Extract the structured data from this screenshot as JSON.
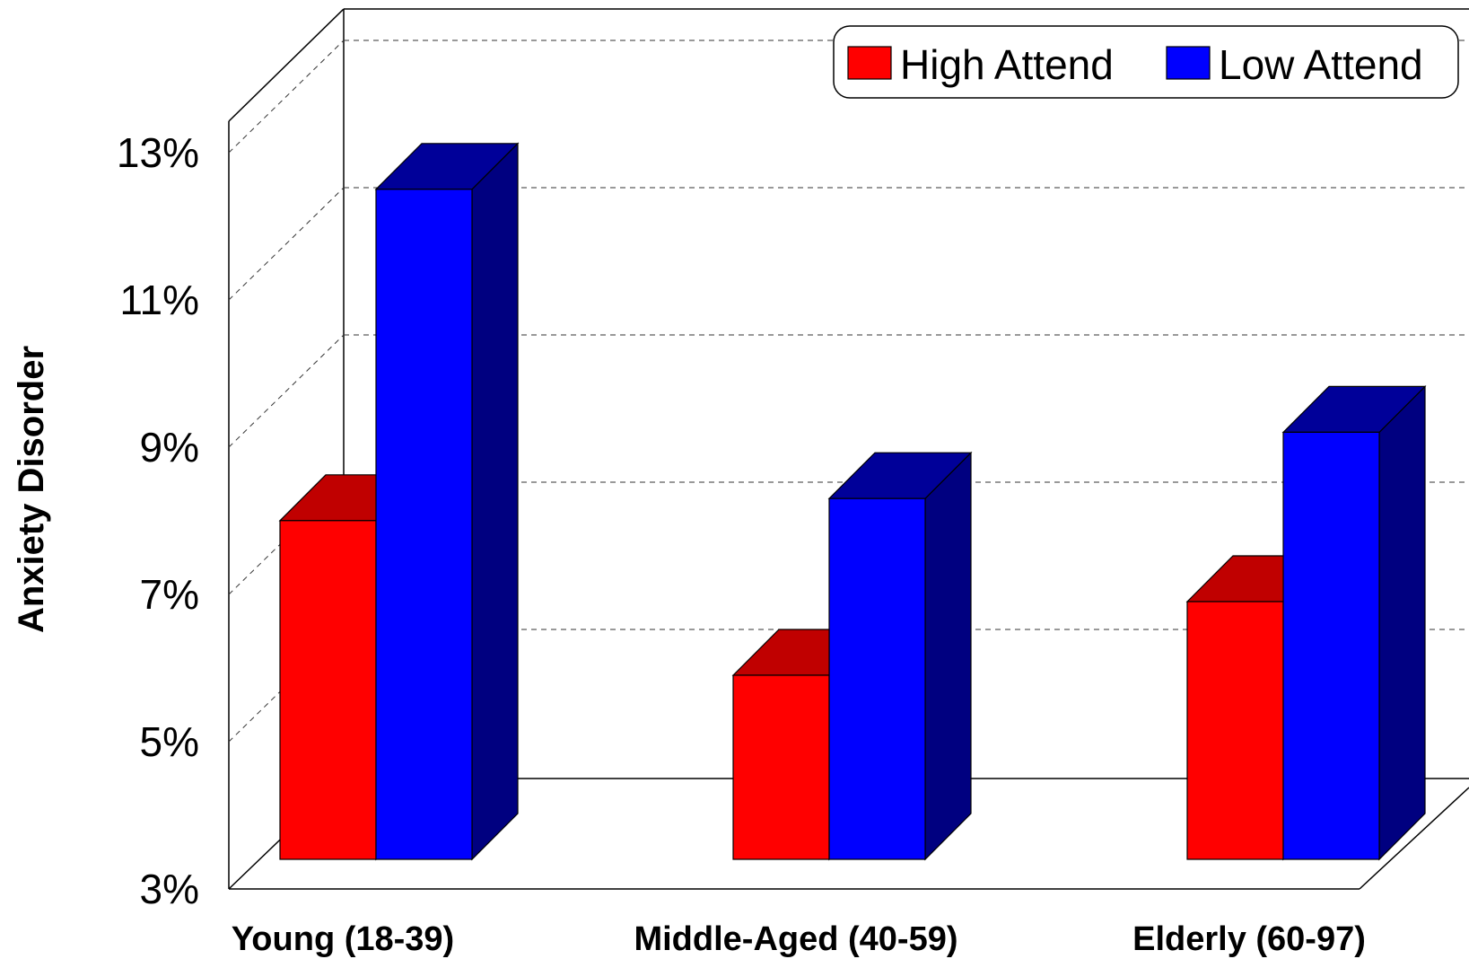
{
  "chart_data": {
    "type": "bar",
    "categories": [
      "Young (18-39)",
      "Middle-Aged (40-59)",
      "Elderly (60-97)"
    ],
    "series": [
      {
        "name": "High Attend",
        "values": [
          7.6,
          5.5,
          6.5
        ],
        "color": "#FF0000",
        "top_color": "#C00000",
        "side_color": "#800000"
      },
      {
        "name": "Low Attend",
        "values": [
          12.1,
          7.9,
          8.8
        ],
        "color": "#0000FF",
        "top_color": "#000099",
        "side_color": "#000080"
      }
    ],
    "xlabel": "",
    "ylabel": "Anxiety Disorder",
    "ylim": [
      3,
      13
    ],
    "yticks": [
      "3%",
      "5%",
      "7%",
      "9%",
      "11%",
      "13%"
    ],
    "ytick_values": [
      3,
      5,
      7,
      9,
      11,
      13
    ],
    "grid": true,
    "legend_position": "top-right",
    "style": "3d"
  }
}
